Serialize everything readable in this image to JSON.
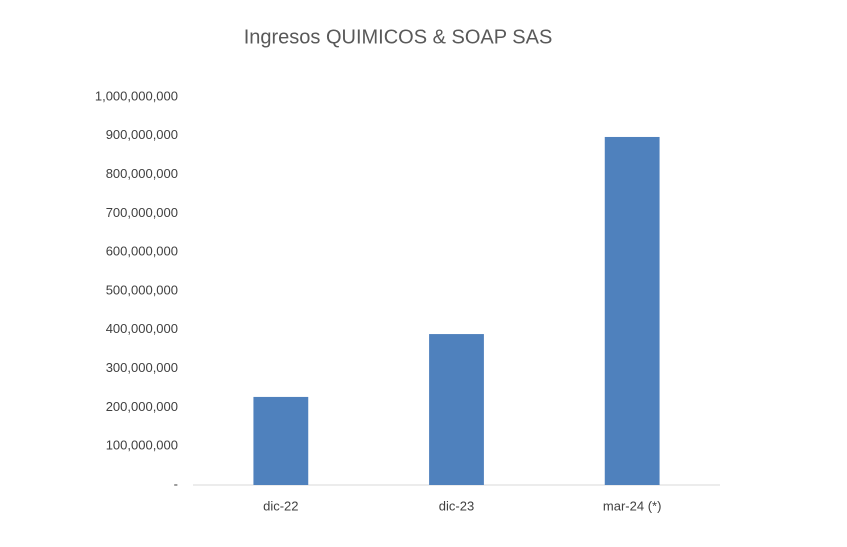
{
  "chart_data": {
    "type": "bar",
    "title": "Ingresos QUIMICOS & SOAP SAS",
    "categories": [
      "dic-22",
      "dic-23",
      "mar-24 (*)"
    ],
    "values": [
      227000000,
      389000000,
      897000000
    ],
    "color": "#4f81bd",
    "ylim": [
      0,
      1000000000
    ],
    "yticks": [
      {
        "value": 0,
        "label": "-"
      },
      {
        "value": 100000000,
        "label": "100,000,000"
      },
      {
        "value": 200000000,
        "label": "200,000,000"
      },
      {
        "value": 300000000,
        "label": "300,000,000"
      },
      {
        "value": 400000000,
        "label": "400,000,000"
      },
      {
        "value": 500000000,
        "label": "500,000,000"
      },
      {
        "value": 600000000,
        "label": "600,000,000"
      },
      {
        "value": 700000000,
        "label": "700,000,000"
      },
      {
        "value": 800000000,
        "label": "800,000,000"
      },
      {
        "value": 900000000,
        "label": "900,000,000"
      },
      {
        "value": 1000000000,
        "label": "1,000,000,000"
      }
    ],
    "grid": false
  }
}
